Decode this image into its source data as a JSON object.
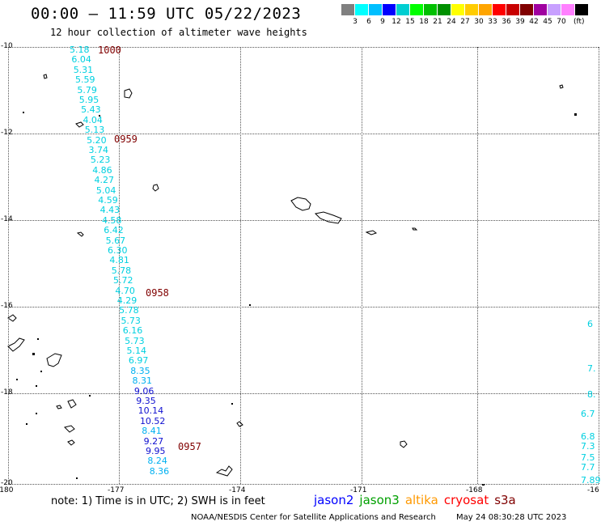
{
  "title": "00:00 – 11:59 UTC 05/22/2023",
  "subtitle": "12 hour collection of altimeter wave heights",
  "legend": {
    "swatches": [
      "#808080",
      "#00ffff",
      "#00bfff",
      "#0000ff",
      "#00ced1",
      "#00ff00",
      "#00c000",
      "#009000",
      "#ffff00",
      "#ffcc00",
      "#ffa500",
      "#ff0000",
      "#c80000",
      "#800000",
      "#a000a0",
      "#c8a0ff",
      "#ff80ff",
      "#000000"
    ],
    "labels": [
      "3",
      "6",
      "9",
      "12",
      "15",
      "18",
      "21",
      "24",
      "27",
      "30",
      "33",
      "36",
      "39",
      "42",
      "45",
      "70"
    ],
    "unit": "(ft)"
  },
  "map": {
    "y_labels": [
      "-10",
      "-12",
      "-14",
      "-16",
      "-18",
      "-20"
    ],
    "x_labels": [
      "-180",
      "-177",
      "-174",
      "-171",
      "-168",
      "-16"
    ]
  },
  "track_values": [
    {
      "v": "5.18",
      "c": "#00d0e0"
    },
    {
      "v": "6.04",
      "c": "#00d0e0"
    },
    {
      "v": "5.31",
      "c": "#00d0e0"
    },
    {
      "v": "5.59",
      "c": "#00d0e0"
    },
    {
      "v": "5.79",
      "c": "#00d0e0"
    },
    {
      "v": "5.95",
      "c": "#00d0e0"
    },
    {
      "v": "5.43",
      "c": "#00d0e0"
    },
    {
      "v": "4.04",
      "c": "#00d0e0"
    },
    {
      "v": "5.13",
      "c": "#00d0e0"
    },
    {
      "v": "5.20",
      "c": "#00d0e0"
    },
    {
      "v": "3.74",
      "c": "#00d0e0"
    },
    {
      "v": "5.23",
      "c": "#00d0e0"
    },
    {
      "v": "4.86",
      "c": "#00d0e0"
    },
    {
      "v": "4.27",
      "c": "#00d0e0"
    },
    {
      "v": "5.04",
      "c": "#00d0e0"
    },
    {
      "v": "4.59",
      "c": "#00d0e0"
    },
    {
      "v": "4.43",
      "c": "#00d0e0"
    },
    {
      "v": "4.58",
      "c": "#00d0e0"
    },
    {
      "v": "6.42",
      "c": "#00d0e0"
    },
    {
      "v": "5.67",
      "c": "#00d0e0"
    },
    {
      "v": "6.30",
      "c": "#00d0e0"
    },
    {
      "v": "4.81",
      "c": "#00d0e0"
    },
    {
      "v": "5.78",
      "c": "#00d0e0"
    },
    {
      "v": "5.72",
      "c": "#00d0e0"
    },
    {
      "v": "4.70",
      "c": "#00d0e0"
    },
    {
      "v": "4.29",
      "c": "#00d0e0"
    },
    {
      "v": "5.78",
      "c": "#00d0e0"
    },
    {
      "v": "5.73",
      "c": "#00d0e0"
    },
    {
      "v": "6.16",
      "c": "#00d0e0"
    },
    {
      "v": "5.73",
      "c": "#00d0e0"
    },
    {
      "v": "5.14",
      "c": "#00d0e0"
    },
    {
      "v": "6.97",
      "c": "#00d0e0"
    },
    {
      "v": "8.35",
      "c": "#00b0f0"
    },
    {
      "v": "8.31",
      "c": "#00b0f0"
    },
    {
      "v": "9.06",
      "c": "#1010d0"
    },
    {
      "v": "9.35",
      "c": "#1010d0"
    },
    {
      "v": "10.14",
      "c": "#1010d0"
    },
    {
      "v": "10.52",
      "c": "#1010d0"
    },
    {
      "v": "8.41",
      "c": "#00b0f0"
    },
    {
      "v": "9.27",
      "c": "#1010d0"
    },
    {
      "v": "9.95",
      "c": "#1010d0"
    },
    {
      "v": "8.24",
      "c": "#00b0f0"
    },
    {
      "v": "8.36",
      "c": "#00b0f0"
    }
  ],
  "time_labels": [
    "1000",
    "0959",
    "0958",
    "0957"
  ],
  "edge_values": [
    "6",
    "7.",
    "8.",
    "6.7",
    "6.8",
    "7.3",
    "7.5",
    "7.7",
    "7.89"
  ],
  "note": "note: 1) Time is in UTC; 2) SWH is in feet",
  "satellites": [
    {
      "name": "jason2",
      "color": "#0000ff"
    },
    {
      "name": "jason3",
      "color": "#00a000"
    },
    {
      "name": "altika",
      "color": "#ff9900"
    },
    {
      "name": "cryosat",
      "color": "#ff0000"
    },
    {
      "name": "s3a",
      "color": "#800000"
    }
  ],
  "footer": {
    "credit": "NOAA/NESDIS Center for Satellite Applications and Research",
    "timestamp": "May 24 08:30:28 UTC 2023"
  }
}
